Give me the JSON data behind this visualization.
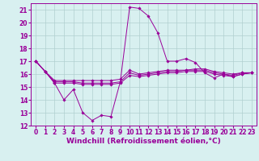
{
  "x": [
    0,
    1,
    2,
    3,
    4,
    5,
    6,
    7,
    8,
    9,
    10,
    11,
    12,
    13,
    14,
    15,
    16,
    17,
    18,
    19,
    20,
    21,
    22,
    23
  ],
  "series": [
    [
      17.0,
      16.2,
      15.3,
      14.0,
      14.8,
      13.0,
      12.4,
      12.8,
      12.7,
      15.4,
      21.2,
      21.1,
      20.5,
      19.2,
      17.0,
      17.0,
      17.2,
      16.9,
      16.1,
      15.7,
      16.0,
      15.8,
      16.0,
      16.1
    ],
    [
      17.0,
      16.2,
      15.5,
      15.5,
      15.5,
      15.5,
      15.5,
      15.5,
      15.5,
      15.6,
      16.3,
      16.0,
      16.1,
      16.2,
      16.3,
      16.3,
      16.3,
      16.4,
      16.4,
      16.2,
      16.1,
      16.0,
      16.1,
      16.1
    ],
    [
      17.0,
      16.2,
      15.4,
      15.4,
      15.4,
      15.3,
      15.3,
      15.3,
      15.3,
      15.4,
      16.1,
      15.9,
      16.0,
      16.1,
      16.2,
      16.2,
      16.3,
      16.3,
      16.3,
      16.1,
      16.0,
      15.9,
      16.1,
      16.1
    ],
    [
      17.0,
      16.2,
      15.3,
      15.3,
      15.3,
      15.2,
      15.2,
      15.2,
      15.2,
      15.3,
      15.9,
      15.8,
      15.9,
      16.0,
      16.1,
      16.1,
      16.2,
      16.2,
      16.2,
      16.0,
      15.9,
      15.8,
      16.0,
      16.1
    ]
  ],
  "line_color": "#990099",
  "bg_color": "#d8f0f0",
  "grid_color": "#b0d0d0",
  "ylim": [
    12,
    21.5
  ],
  "xlim": [
    -0.5,
    23.5
  ],
  "yticks": [
    12,
    13,
    14,
    15,
    16,
    17,
    18,
    19,
    20,
    21
  ],
  "xticks": [
    0,
    1,
    2,
    3,
    4,
    5,
    6,
    7,
    8,
    9,
    10,
    11,
    12,
    13,
    14,
    15,
    16,
    17,
    18,
    19,
    20,
    21,
    22,
    23
  ],
  "xlabel": "Windchill (Refroidissement éolien,°C)",
  "xlabel_fontsize": 6.5,
  "tick_fontsize": 5.5,
  "marker": "D",
  "marker_size": 1.8,
  "linewidth": 0.7
}
